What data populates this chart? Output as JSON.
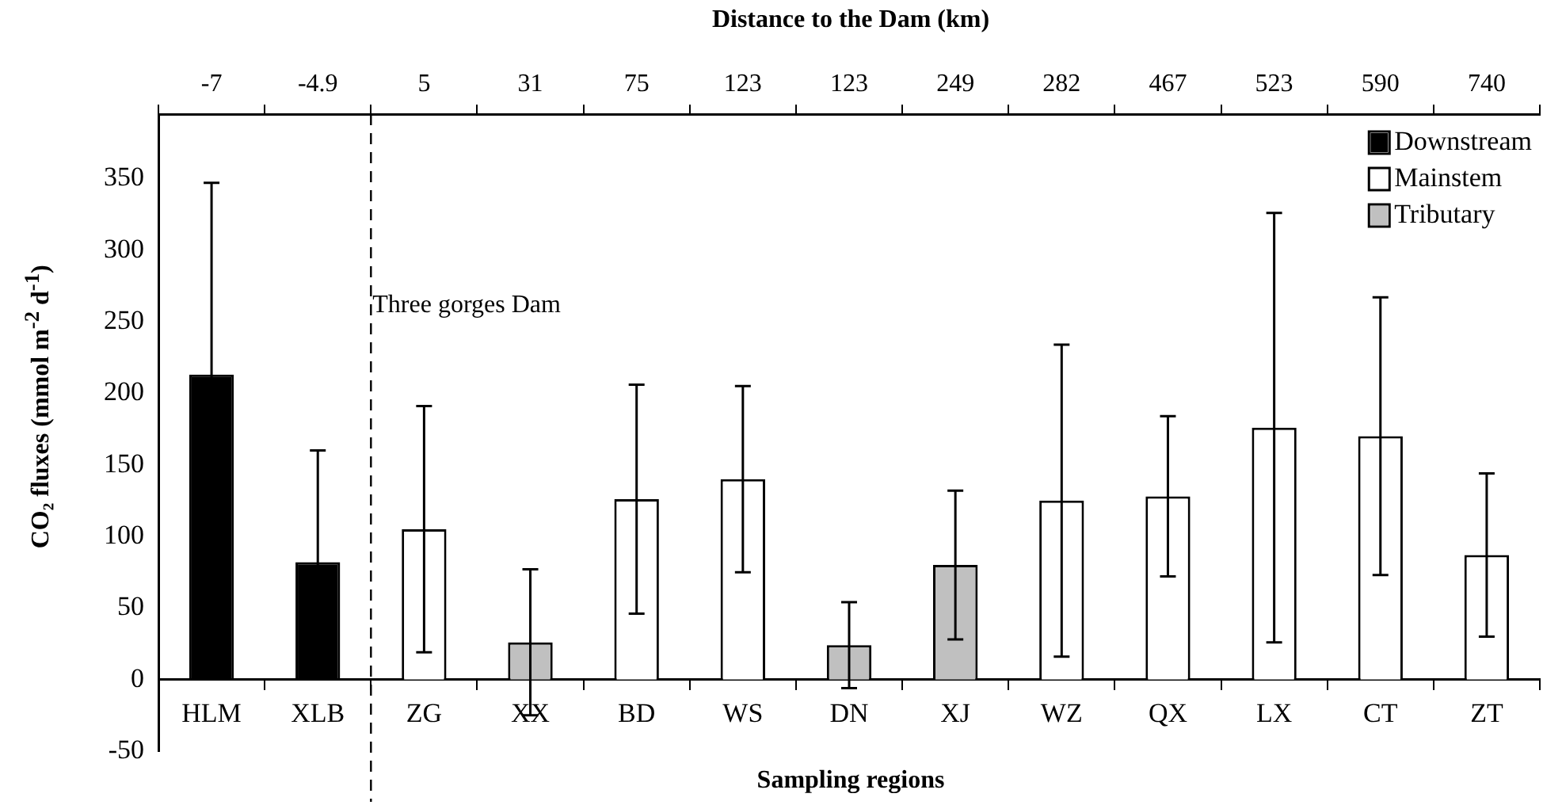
{
  "chart_data": {
    "type": "bar",
    "xlabel": "Sampling regions",
    "ylabel": "CO₂ fluxes (mmol m$^{-2}$ d$^{-1}$)",
    "x2label": "Distance to the Dam (km)",
    "categories": [
      "HLM",
      "XLB",
      "ZG",
      "XX",
      "BD",
      "WS",
      "DN",
      "XJ",
      "WZ",
      "QX",
      "LX",
      "CT",
      "ZT"
    ],
    "series": [
      {
        "name": "Downstream",
        "color": "#000000",
        "values": [
          213,
          82,
          null,
          null,
          null,
          null,
          null,
          null,
          null,
          null,
          null,
          null,
          null
        ],
        "errors": [
          134,
          78,
          null,
          null,
          null,
          null,
          null,
          null,
          null,
          null,
          null,
          null,
          null
        ]
      },
      {
        "name": "Mainstem",
        "color": "#ffffff",
        "values": [
          null,
          null,
          105,
          null,
          126,
          140,
          null,
          null,
          125,
          128,
          176,
          170,
          87
        ],
        "errors": [
          null,
          null,
          86,
          null,
          80,
          65,
          null,
          null,
          109,
          56,
          150,
          97,
          57
        ]
      },
      {
        "name": "Tributary",
        "color": "#c0c0c0",
        "values": [
          null,
          null,
          null,
          26,
          null,
          null,
          24,
          80,
          null,
          null,
          null,
          null,
          null
        ],
        "errors": [
          null,
          null,
          null,
          51,
          null,
          null,
          30,
          52,
          null,
          null,
          null,
          null,
          null
        ]
      }
    ],
    "ylim": [
      -50,
      395
    ],
    "yticks": [
      -50,
      0,
      50,
      100,
      150,
      200,
      250,
      300,
      350
    ],
    "annotations": [
      "-7",
      "-4.9",
      "5",
      "31",
      "75",
      "123",
      "123",
      "249",
      "282",
      "467",
      "523",
      "590",
      "740",
      "Three gorges Dam"
    ],
    "legend": "top right",
    "grid": false
  }
}
